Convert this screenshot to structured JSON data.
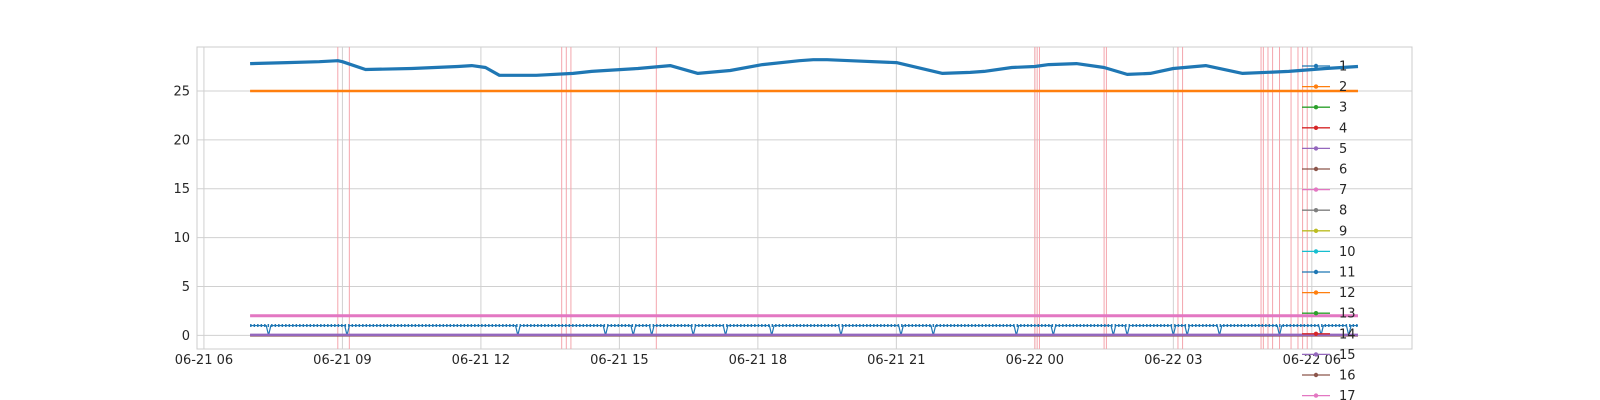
{
  "chart_data": {
    "type": "line",
    "title": "",
    "xlabel": "",
    "ylabel": "",
    "x_axis": {
      "type": "time",
      "range": [
        "2024-06-21T06:00",
        "2024-06-22T08:30"
      ],
      "tick_labels": [
        "06-21 06",
        "06-21 09",
        "06-21 12",
        "06-21 15",
        "06-21 18",
        "06-21 21",
        "06-22 00",
        "06-22 03",
        "06-22 06"
      ],
      "tick_hours": [
        0,
        3,
        6,
        9,
        12,
        15,
        18,
        21,
        24
      ]
    },
    "ylim": [
      -1.4,
      29.5
    ],
    "y_ticks": [
      0,
      5,
      10,
      15,
      20,
      25
    ],
    "grid": true,
    "legend_position": "right",
    "legend": [
      "1",
      "2",
      "3",
      "4",
      "5",
      "6",
      "7",
      "8",
      "9",
      "10",
      "11",
      "12",
      "13",
      "14",
      "15",
      "16",
      "17"
    ],
    "series": [
      {
        "name": "1",
        "color": "#1f77b4",
        "style": "line-with-markers",
        "points_hours": [
          1.0,
          1.8,
          2.5,
          2.9,
          3.0,
          3.5,
          4.5,
          5.5,
          5.8,
          6.1,
          6.4,
          7.2,
          8.0,
          8.4,
          8.7,
          9.4,
          10.1,
          10.7,
          11.4,
          12.1,
          12.9,
          13.2,
          13.5,
          14.0,
          15.0,
          16.0,
          16.6,
          16.9,
          17.5,
          18.0,
          18.3,
          18.9,
          19.5,
          20.0,
          20.5,
          21.0,
          21.7,
          22.5,
          23.5,
          24.3,
          25.0
        ],
        "points_y": [
          27.8,
          27.9,
          28.0,
          28.1,
          28.0,
          27.2,
          27.3,
          27.5,
          27.6,
          27.4,
          26.6,
          26.6,
          26.8,
          27.0,
          27.1,
          27.3,
          27.6,
          26.8,
          27.1,
          27.7,
          28.1,
          28.2,
          28.2,
          28.1,
          27.9,
          26.8,
          26.9,
          27.0,
          27.4,
          27.5,
          27.7,
          27.8,
          27.4,
          26.7,
          26.8,
          27.3,
          27.6,
          26.8,
          27.0,
          27.3,
          27.5
        ]
      },
      {
        "name": "2",
        "color": "#ff7f0e",
        "style": "flat",
        "value": 25.0
      },
      {
        "name": "7",
        "color": "#e377c2",
        "style": "flat",
        "value": 2.0
      },
      {
        "name": "11",
        "color": "#1f77b4",
        "style": "toggling",
        "value": 1.0,
        "low": 0.0,
        "dip_hours": [
          1.4,
          3.1,
          6.8,
          8.7,
          9.3,
          9.7,
          10.6,
          11.3,
          12.3,
          13.8,
          15.1,
          15.8,
          17.6,
          18.4,
          19.7,
          20.0,
          21.0,
          21.3,
          22.0,
          23.3,
          24.2,
          24.8
        ]
      },
      {
        "name": "16",
        "color": "#8c564b",
        "style": "flat",
        "value": 0.0
      },
      {
        "name": "5",
        "color": "#9467bd",
        "style": "flat",
        "value": 0.05
      }
    ],
    "event_lines_hours": [
      2.9,
      3.15,
      7.75,
      7.85,
      7.95,
      9.8,
      18.0,
      18.05,
      18.1,
      19.5,
      19.55,
      21.1,
      21.2,
      22.9,
      22.95,
      23.05,
      23.15,
      23.3,
      23.55,
      23.7,
      23.8,
      23.9
    ]
  }
}
